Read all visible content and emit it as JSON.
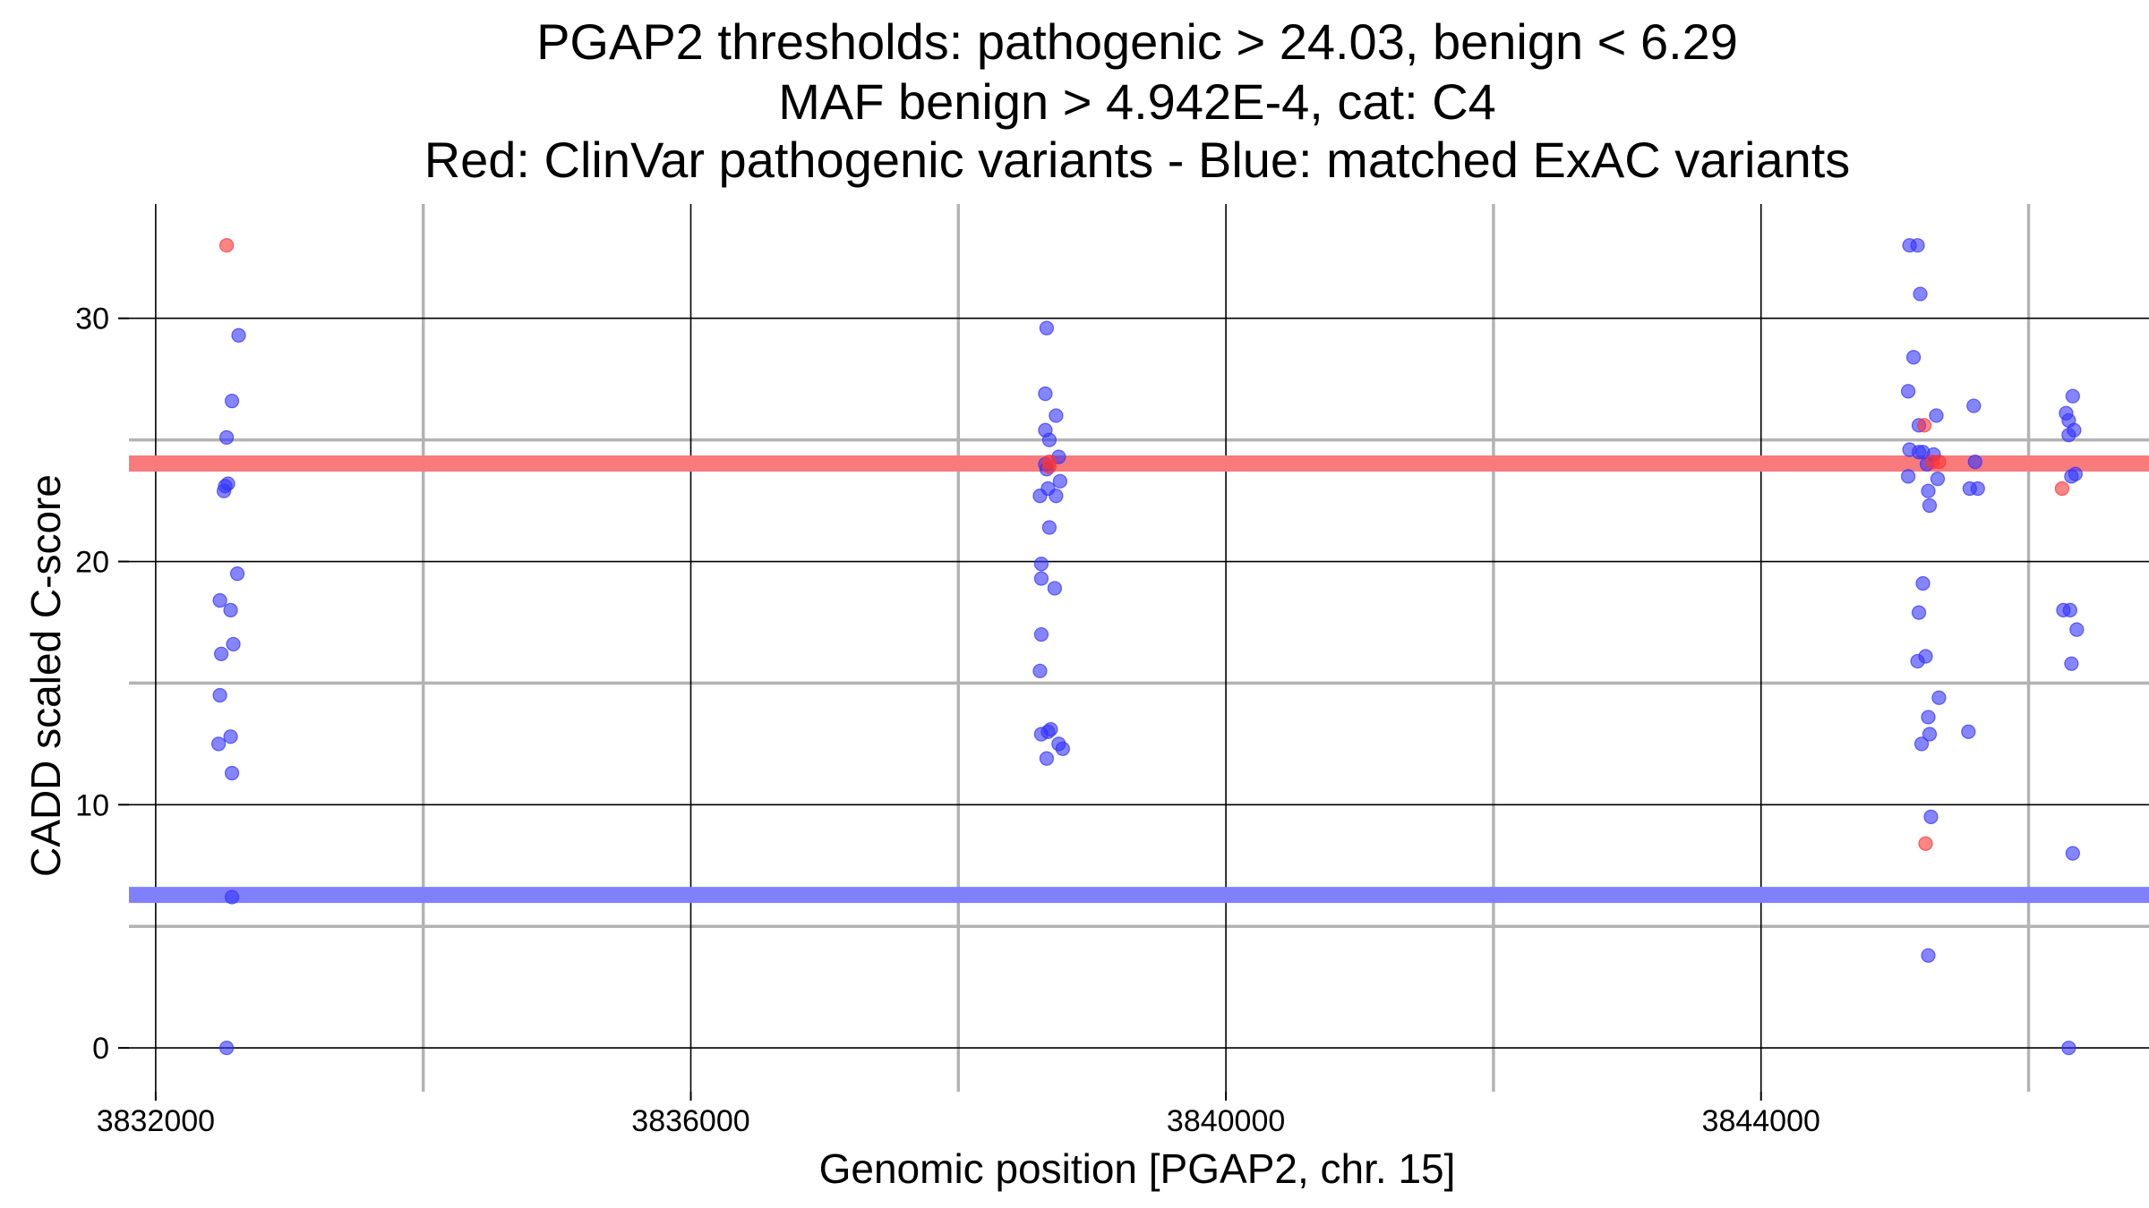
{
  "chart_data": {
    "type": "scatter",
    "title_lines": [
      "PGAP2 thresholds: pathogenic > 24.03, benign < 6.29",
      "MAF benign > 4.942E-4, cat: C4",
      "Red: ClinVar pathogenic variants - Blue: matched ExAC variants"
    ],
    "xlabel": "Genomic position [PGAP2, chr. 15]",
    "ylabel": "CADD scaled C-score",
    "xlim": [
      3831800,
      3846900
    ],
    "ylim": [
      -1.8,
      34.7
    ],
    "x_major_ticks": [
      3832000,
      3836000,
      3840000,
      3844000
    ],
    "x_tick_labels": [
      "3832000",
      "3836000",
      "3840000",
      "3844000"
    ],
    "x_minor_gridlines": [
      3834000,
      3838000,
      3842000,
      3846000
    ],
    "y_major_ticks": [
      0,
      10,
      20,
      30
    ],
    "y_tick_labels": [
      "0",
      "10",
      "20",
      "30"
    ],
    "y_minor_gridlines": [
      5,
      15,
      25
    ],
    "thresholds": [
      {
        "name": "pathogenic",
        "value": 24.03,
        "color": "#f87a7a"
      },
      {
        "name": "benign",
        "value": 6.29,
        "color": "#8080ff"
      }
    ],
    "colors": {
      "pathogenic": "#ff3333",
      "benign": "#3333ff",
      "major_grid": "#000000",
      "minor_grid": "#b3b3b3"
    },
    "series": [
      {
        "name": "ClinVar pathogenic variants",
        "color": "#ff3333",
        "points": [
          [
            3832530,
            33.0
          ],
          [
            3838680,
            24.1
          ],
          [
            3838680,
            23.9
          ],
          [
            3845220,
            25.6
          ],
          [
            3845280,
            24.1
          ],
          [
            3845330,
            24.1
          ],
          [
            3845230,
            8.4
          ],
          [
            3846250,
            23.0
          ]
        ]
      },
      {
        "name": "matched ExAC variants",
        "color": "#3333ff",
        "points": [
          [
            3832620,
            29.3
          ],
          [
            3832570,
            26.6
          ],
          [
            3832530,
            25.1
          ],
          [
            3832520,
            23.1
          ],
          [
            3832540,
            23.2
          ],
          [
            3832510,
            22.9
          ],
          [
            3832610,
            19.5
          ],
          [
            3832480,
            18.4
          ],
          [
            3832560,
            18.0
          ],
          [
            3832490,
            16.2
          ],
          [
            3832580,
            16.6
          ],
          [
            3832480,
            14.5
          ],
          [
            3832560,
            12.8
          ],
          [
            3832470,
            12.5
          ],
          [
            3832570,
            11.3
          ],
          [
            3832570,
            6.2
          ],
          [
            3832530,
            0.0
          ],
          [
            3838660,
            29.6
          ],
          [
            3838650,
            26.9
          ],
          [
            3838730,
            26.0
          ],
          [
            3838650,
            25.4
          ],
          [
            3838680,
            25.0
          ],
          [
            3838750,
            24.3
          ],
          [
            3838650,
            24.0
          ],
          [
            3838660,
            23.8
          ],
          [
            3838670,
            23.0
          ],
          [
            3838760,
            23.3
          ],
          [
            3838610,
            22.7
          ],
          [
            3838730,
            22.7
          ],
          [
            3838680,
            21.4
          ],
          [
            3838620,
            19.9
          ],
          [
            3838620,
            19.3
          ],
          [
            3838720,
            18.9
          ],
          [
            3838620,
            17.0
          ],
          [
            3838610,
            15.5
          ],
          [
            3838690,
            13.1
          ],
          [
            3838670,
            13.0
          ],
          [
            3838620,
            12.9
          ],
          [
            3838750,
            12.5
          ],
          [
            3838780,
            12.3
          ],
          [
            3838660,
            11.9
          ],
          [
            3845110,
            33.0
          ],
          [
            3845170,
            33.0
          ],
          [
            3845190,
            31.0
          ],
          [
            3845140,
            28.4
          ],
          [
            3845100,
            27.0
          ],
          [
            3845590,
            26.4
          ],
          [
            3845310,
            26.0
          ],
          [
            3845180,
            25.6
          ],
          [
            3845110,
            24.6
          ],
          [
            3845180,
            24.5
          ],
          [
            3845210,
            24.5
          ],
          [
            3845290,
            24.4
          ],
          [
            3845240,
            24.0
          ],
          [
            3845600,
            24.1
          ],
          [
            3845100,
            23.5
          ],
          [
            3845320,
            23.4
          ],
          [
            3845560,
            23.0
          ],
          [
            3845620,
            23.0
          ],
          [
            3845250,
            22.9
          ],
          [
            3845260,
            22.3
          ],
          [
            3845210,
            19.1
          ],
          [
            3845180,
            17.9
          ],
          [
            3845230,
            16.1
          ],
          [
            3845170,
            15.9
          ],
          [
            3845330,
            14.4
          ],
          [
            3845250,
            13.6
          ],
          [
            3845550,
            13.0
          ],
          [
            3845260,
            12.9
          ],
          [
            3845200,
            12.5
          ],
          [
            3845270,
            9.5
          ],
          [
            3845250,
            3.8
          ],
          [
            3846330,
            26.8
          ],
          [
            3846280,
            26.1
          ],
          [
            3846300,
            25.8
          ],
          [
            3846340,
            25.4
          ],
          [
            3846300,
            25.2
          ],
          [
            3846320,
            23.5
          ],
          [
            3846350,
            23.6
          ],
          [
            3846260,
            18.0
          ],
          [
            3846310,
            18.0
          ],
          [
            3846360,
            17.2
          ],
          [
            3846320,
            15.8
          ],
          [
            3846330,
            8.0
          ],
          [
            3846300,
            0.0
          ]
        ]
      }
    ]
  }
}
